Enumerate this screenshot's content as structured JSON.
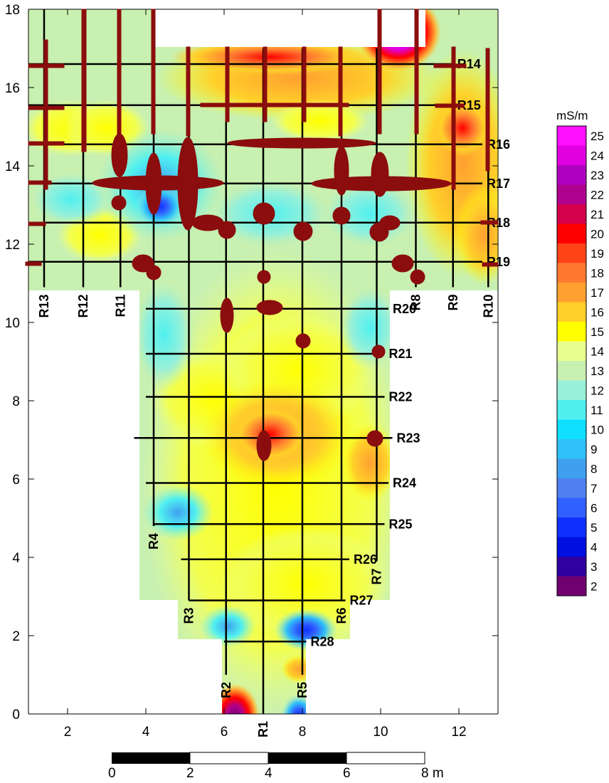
{
  "map": {
    "x_axis": {
      "min": 1,
      "max": 13,
      "ticks": [
        "2",
        "4",
        "6",
        "8",
        "10",
        "12"
      ]
    },
    "y_axis": {
      "min": 0,
      "max": 18,
      "ticks": [
        "0",
        "2",
        "4",
        "6",
        "8",
        "10",
        "12",
        "14",
        "16",
        "18"
      ]
    },
    "horizontal_profiles": [
      {
        "label": "R14",
        "y": 16.6,
        "x0": 1.0,
        "x1": 11.85
      },
      {
        "label": "R15",
        "y": 15.55,
        "x0": 1.0,
        "x1": 11.85
      },
      {
        "label": "R16",
        "y": 14.55,
        "x0": 1.0,
        "x1": 12.6
      },
      {
        "label": "R17",
        "y": 13.55,
        "x0": 1.0,
        "x1": 12.6
      },
      {
        "label": "R18",
        "y": 12.55,
        "x0": 1.0,
        "x1": 12.6
      },
      {
        "label": "R19",
        "y": 11.55,
        "x0": 1.0,
        "x1": 12.6
      },
      {
        "label": "R20",
        "y": 10.35,
        "x0": 4.0,
        "x1": 10.2
      },
      {
        "label": "R21",
        "y": 9.2,
        "x0": 4.0,
        "x1": 10.1
      },
      {
        "label": "R22",
        "y": 8.1,
        "x0": 4.0,
        "x1": 10.1
      },
      {
        "label": "R23",
        "y": 7.05,
        "x0": 3.7,
        "x1": 10.3
      },
      {
        "label": "R24",
        "y": 5.9,
        "x0": 4.0,
        "x1": 10.2
      },
      {
        "label": "R25",
        "y": 4.85,
        "x0": 4.2,
        "x1": 10.1
      },
      {
        "label": "R26",
        "y": 3.95,
        "x0": 4.9,
        "x1": 9.2
      },
      {
        "label": "R27",
        "y": 2.9,
        "x0": 5.1,
        "x1": 9.1
      },
      {
        "label": "R28",
        "y": 1.85,
        "x0": 6.0,
        "x1": 8.1
      }
    ],
    "vertical_profiles": [
      {
        "label": "R13",
        "x": 1.4,
        "y0": 10.9,
        "y1": 18
      },
      {
        "label": "R12",
        "x": 2.4,
        "y0": 10.9,
        "y1": 18
      },
      {
        "label": "R11",
        "x": 3.35,
        "y0": 10.9,
        "y1": 18
      },
      {
        "label": "R4",
        "x": 4.2,
        "y0": 4.8,
        "y1": 18
      },
      {
        "label": "R3",
        "x": 5.1,
        "y0": 2.9,
        "y1": 17
      },
      {
        "label": "R2",
        "x": 6.05,
        "y0": 1.0,
        "y1": 17
      },
      {
        "label": "R1",
        "x": 7.0,
        "y0": 0,
        "y1": 17
      },
      {
        "label": "R5",
        "x": 8.0,
        "y0": 1.0,
        "y1": 17
      },
      {
        "label": "R6",
        "x": 9.0,
        "y0": 2.9,
        "y1": 17
      },
      {
        "label": "R7",
        "x": 9.9,
        "y0": 3.9,
        "y1": 17
      },
      {
        "label": "R8",
        "x": 10.9,
        "y0": 10.9,
        "y1": 18
      },
      {
        "label": "R9",
        "x": 11.85,
        "y0": 10.9,
        "y1": 17
      },
      {
        "label": "R10",
        "x": 12.75,
        "y0": 10.9,
        "y1": 17
      }
    ]
  },
  "legend": {
    "title": "mS/m",
    "values": [
      "25",
      "24",
      "23",
      "22",
      "21",
      "20",
      "19",
      "18",
      "17",
      "16",
      "15",
      "14",
      "13",
      "12",
      "11",
      "10",
      "9",
      "8",
      "7",
      "6",
      "5",
      "4",
      "3",
      "2"
    ],
    "colors": [
      "#ff10ff",
      "#e000e0",
      "#b000c0",
      "#b00090",
      "#d4004a",
      "#ff0000",
      "#ff4418",
      "#ff7a30",
      "#ffa030",
      "#ffd02a",
      "#ffff00",
      "#e8ff90",
      "#c8f0b0",
      "#98f0d8",
      "#50f0f0",
      "#10e0ff",
      "#30c0f8",
      "#40a0f0",
      "#5080f0",
      "#3060ff",
      "#1030ff",
      "#0010e0",
      "#3000a0",
      "#700070"
    ]
  },
  "scale_bar": {
    "labels": [
      "0",
      "2",
      "4",
      "6",
      "8 m"
    ]
  },
  "colors": {
    "anomaly": "#8b0d0d",
    "profile_line": "#000000",
    "background_field": "#c8f0b0"
  }
}
